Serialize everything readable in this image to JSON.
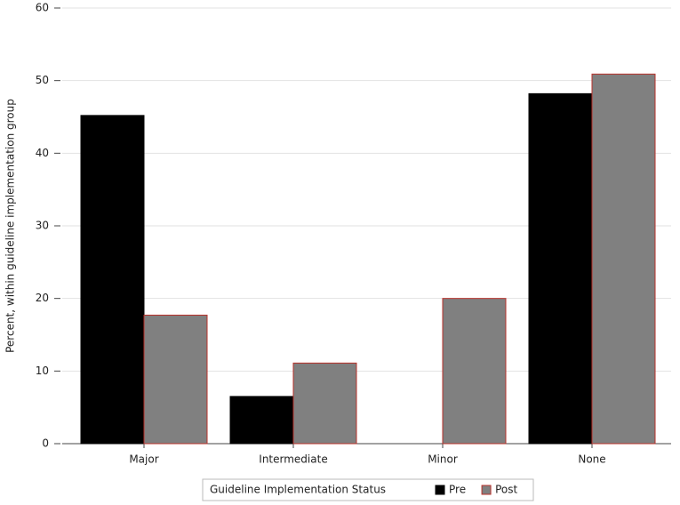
{
  "chart_data": {
    "type": "bar",
    "y_label": "Percent, within guideline implementation group",
    "legend_title": "Guideline Implementation Status",
    "categories": [
      "Major",
      "Intermediate",
      "Minor",
      "None"
    ],
    "series": [
      {
        "name": "Pre",
        "color": "#000000",
        "values": [
          45.2,
          6.5,
          0,
          48.2
        ]
      },
      {
        "name": "Post",
        "color": "#808080",
        "values": [
          17.7,
          11.1,
          20.0,
          50.9
        ]
      }
    ],
    "ylim": [
      0,
      60
    ],
    "yticks": [
      0,
      10,
      20,
      30,
      40,
      50,
      60
    ],
    "grid": true,
    "legend": "bottom"
  }
}
